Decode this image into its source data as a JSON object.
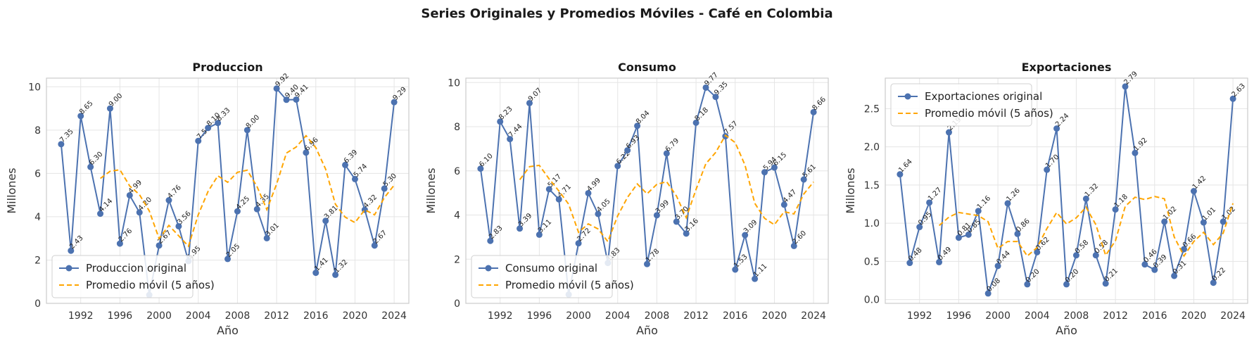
{
  "figure": {
    "title": "Series Originales y Promedios Móviles - Café en Colombia"
  },
  "colors": {
    "original": "#4c72b0",
    "moving_avg": "#ffa500",
    "grid": "#e5e5e5",
    "frame": "#cccccc"
  },
  "chart_data": [
    {
      "type": "line",
      "title": "Produccion",
      "xlabel": "Año",
      "ylabel": "Millones",
      "xlim": [
        1988.5,
        2025.5
      ],
      "ylim": [
        0,
        10.4
      ],
      "xticks": [
        1992,
        1996,
        2000,
        2004,
        2008,
        2012,
        2016,
        2020,
        2024
      ],
      "yticks": [
        0,
        2,
        4,
        6,
        8,
        10
      ],
      "yticklabels": [
        "0",
        "2",
        "4",
        "6",
        "8",
        "10"
      ],
      "grid": true,
      "legend_position": "lower-left",
      "x": [
        1990,
        1991,
        1992,
        1993,
        1994,
        1995,
        1996,
        1997,
        1998,
        1999,
        2000,
        2001,
        2002,
        2003,
        2004,
        2005,
        2006,
        2007,
        2008,
        2009,
        2010,
        2011,
        2012,
        2013,
        2014,
        2015,
        2016,
        2017,
        2018,
        2019,
        2020,
        2021,
        2022,
        2023,
        2024
      ],
      "series": [
        {
          "name": "Produccion original",
          "style": "line-marker",
          "values": [
            7.35,
            2.43,
            8.65,
            6.3,
            4.14,
            9.0,
            2.76,
            4.99,
            4.2,
            0.39,
            2.67,
            4.76,
            3.56,
            1.95,
            7.5,
            8.1,
            8.33,
            2.05,
            4.25,
            8.0,
            4.35,
            3.01,
            9.92,
            9.4,
            9.41,
            6.96,
            1.41,
            3.81,
            1.32,
            6.39,
            5.74,
            4.32,
            2.67,
            5.3,
            9.29
          ],
          "labels": [
            "7.35",
            "2.43",
            "8.65",
            "6.30",
            "4.14",
            "9.00",
            "2.76",
            "4.99",
            "4.20",
            "",
            "2.67",
            "4.76",
            "3.56",
            "1.95",
            "7.50",
            "8.10",
            "8.33",
            "2.05",
            "4.25",
            "8.00",
            "4.35",
            "3.01",
            "9.92",
            "9.40",
            "9.41",
            "6.96",
            "1.41",
            "3.81",
            "1.32",
            "6.39",
            "5.74",
            "4.32",
            "2.67",
            "5.30",
            "9.29"
          ]
        },
        {
          "name": "Promedio móvil (5 años)",
          "style": "dashed",
          "values": [
            null,
            null,
            null,
            null,
            5.77,
            6.1,
            6.17,
            5.42,
            5.02,
            4.27,
            2.99,
            3.6,
            3.12,
            2.64,
            4.09,
            5.17,
            5.89,
            5.59,
            6.05,
            6.15,
            5.39,
            4.33,
            5.51,
            6.94,
            7.22,
            7.74,
            7.19,
            6.2,
            4.58,
            3.98,
            3.73,
            4.32,
            4.09,
            4.88,
            5.46
          ]
        }
      ]
    },
    {
      "type": "line",
      "title": "Consumo",
      "xlabel": "Año",
      "ylabel": "Millones",
      "xlim": [
        1988.5,
        2025.5
      ],
      "ylim": [
        0,
        10.2
      ],
      "xticks": [
        1992,
        1996,
        2000,
        2004,
        2008,
        2012,
        2016,
        2020,
        2024
      ],
      "yticks": [
        0,
        2,
        4,
        6,
        8,
        10
      ],
      "yticklabels": [
        "0",
        "2",
        "4",
        "6",
        "8",
        "10"
      ],
      "grid": true,
      "legend_position": "lower-left",
      "x": [
        1990,
        1991,
        1992,
        1993,
        1994,
        1995,
        1996,
        1997,
        1998,
        1999,
        2000,
        2001,
        2002,
        2003,
        2004,
        2005,
        2006,
        2007,
        2008,
        2009,
        2010,
        2011,
        2012,
        2013,
        2014,
        2015,
        2016,
        2017,
        2018,
        2019,
        2020,
        2021,
        2022,
        2023,
        2024
      ],
      "series": [
        {
          "name": "Consumo original",
          "style": "line-marker",
          "values": [
            6.1,
            2.83,
            8.23,
            7.44,
            3.39,
            9.07,
            3.11,
            5.17,
            4.71,
            0.4,
            2.72,
            4.99,
            4.05,
            1.83,
            6.22,
            6.93,
            8.04,
            1.78,
            3.99,
            6.79,
            3.7,
            3.16,
            8.18,
            9.77,
            9.35,
            7.57,
            1.53,
            3.09,
            1.11,
            5.94,
            6.15,
            4.47,
            2.6,
            5.61,
            8.66
          ],
          "labels": [
            "6.10",
            "2.83",
            "8.23",
            "7.44",
            "3.39",
            "9.07",
            "3.11",
            "5.17",
            "4.71",
            "",
            "2.72",
            "4.99",
            "4.05",
            "1.83",
            "6.22",
            "6.93",
            "8.04",
            "1.78",
            "3.99",
            "6.79",
            "3.70",
            "3.16",
            "8.18",
            "9.77",
            "9.35",
            "7.57",
            "1.53",
            "3.09",
            "1.11",
            "5.94",
            "6.15",
            "4.47",
            "2.60",
            "5.61",
            "8.66"
          ]
        },
        {
          "name": "Promedio móvil (5 años)",
          "style": "dashed",
          "values": [
            null,
            null,
            null,
            null,
            5.6,
            6.19,
            6.25,
            5.64,
            5.09,
            4.49,
            3.22,
            3.6,
            3.37,
            2.8,
            3.96,
            4.8,
            5.41,
            4.96,
            5.39,
            5.51,
            4.86,
            3.88,
            5.16,
            6.32,
            6.83,
            7.61,
            7.28,
            6.26,
            4.53,
            3.85,
            3.56,
            4.15,
            4.05,
            4.95,
            5.5
          ]
        }
      ]
    },
    {
      "type": "line",
      "title": "Exportaciones",
      "xlabel": "Año",
      "ylabel": "Millones",
      "xlim": [
        1988.5,
        2025.5
      ],
      "ylim": [
        -0.05,
        2.9
      ],
      "xticks": [
        1992,
        1996,
        2000,
        2004,
        2008,
        2012,
        2016,
        2020,
        2024
      ],
      "yticks": [
        0,
        0.5,
        1.0,
        1.5,
        2.0,
        2.5
      ],
      "yticklabels": [
        "0.0",
        "0.5",
        "1.0",
        "1.5",
        "2.0",
        "2.5"
      ],
      "grid": true,
      "legend_position": "upper-left",
      "x": [
        1990,
        1991,
        1992,
        1993,
        1994,
        1995,
        1996,
        1997,
        1998,
        1999,
        2000,
        2001,
        2002,
        2003,
        2004,
        2005,
        2006,
        2007,
        2008,
        2009,
        2010,
        2011,
        2012,
        2013,
        2014,
        2015,
        2016,
        2017,
        2018,
        2019,
        2020,
        2021,
        2022,
        2023,
        2024
      ],
      "series": [
        {
          "name": "Exportaciones original",
          "style": "line-marker",
          "values": [
            1.64,
            0.48,
            0.95,
            1.27,
            0.49,
            2.19,
            0.81,
            0.85,
            1.16,
            0.08,
            0.44,
            1.26,
            0.86,
            0.2,
            0.62,
            1.7,
            2.24,
            0.2,
            0.58,
            1.32,
            0.58,
            0.21,
            1.18,
            2.79,
            1.92,
            0.46,
            0.39,
            1.02,
            0.31,
            0.66,
            1.42,
            1.01,
            0.22,
            1.02,
            2.63
          ],
          "labels": [
            "1.64",
            "0.48",
            "0.95",
            "1.27",
            "0.49",
            "2.19",
            "0.81",
            "0.85",
            "1.16",
            "0.08",
            "0.44",
            "1.26",
            "0.86",
            "0.20",
            "0.62",
            "1.70",
            "2.24",
            "0.20",
            "0.58",
            "1.32",
            "0.58",
            "0.21",
            "1.18",
            "2.79",
            "1.92",
            "0.46",
            "0.39",
            "1.02",
            "0.31",
            "0.66",
            "1.42",
            "1.01",
            "0.22",
            "1.02",
            "2.63"
          ]
        },
        {
          "name": "Promedio móvil (5 años)",
          "style": "dashed",
          "values": [
            null,
            null,
            null,
            null,
            0.97,
            1.08,
            1.14,
            1.12,
            1.1,
            1.02,
            0.67,
            0.76,
            0.76,
            0.57,
            0.68,
            0.93,
            1.14,
            0.99,
            1.07,
            1.21,
            0.98,
            0.58,
            0.77,
            1.22,
            1.34,
            1.31,
            1.35,
            1.32,
            0.82,
            0.57,
            0.76,
            0.88,
            0.72,
            0.87,
            1.26
          ]
        }
      ]
    }
  ]
}
